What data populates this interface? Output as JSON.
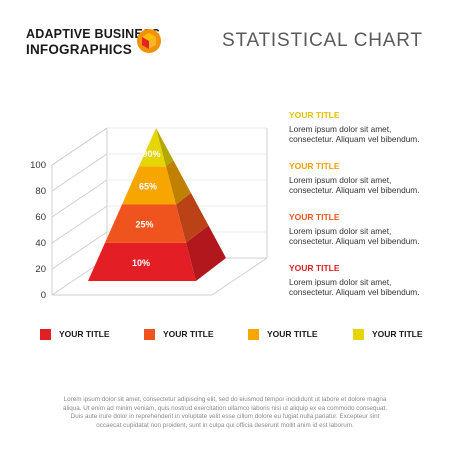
{
  "header": {
    "brand_line1": "ADAPTIVE BUSINESS",
    "brand_line2": "INFOGRAPHICS",
    "title": "STATISTICAL CHART"
  },
  "colors": {
    "red": "#e31e24",
    "orange_red": "#f0541e",
    "orange": "#f7a600",
    "yellow": "#e5d600",
    "icon_red": "#e52421",
    "icon_orange": "#f39200",
    "icon_yellow": "#fcc000"
  },
  "chart_data": {
    "type": "pyramid",
    "ylim": [
      0,
      100
    ],
    "yticks": [
      "0",
      "20",
      "40",
      "60",
      "80",
      "100"
    ],
    "segments": [
      {
        "label": "10%",
        "value": 10,
        "color": "#e31e24"
      },
      {
        "label": "25%",
        "value": 25,
        "color": "#f0541e"
      },
      {
        "label": "65%",
        "value": 65,
        "color": "#f7a600"
      },
      {
        "label": "90%",
        "value": 90,
        "color": "#e5d600"
      }
    ]
  },
  "side_list": [
    {
      "title": "YOUR TITLE",
      "color": "#e5c200",
      "line1": "Lorem ipsum dolor sit amet,",
      "line2": "consectetur. Aliquam vel bibendum."
    },
    {
      "title": "YOUR TITLE",
      "color": "#f2a200",
      "line1": "Lorem ipsum dolor sit amet,",
      "line2": "consectetur. Aliquam vel bibendum."
    },
    {
      "title": "YOUR TITLE",
      "color": "#f0541e",
      "line1": "Lorem ipsum dolor sit amet,",
      "line2": "consectetur. Aliquam vel bibendum."
    },
    {
      "title": "YOUR TITLE",
      "color": "#e31e24",
      "line1": "Lorem ipsum dolor sit amet,",
      "line2": "consectetur. Aliquam vel bibendum."
    }
  ],
  "legend": [
    {
      "label": "YOUR TITLE",
      "color": "#e31e24"
    },
    {
      "label": "YOUR TITLE",
      "color": "#f0541e"
    },
    {
      "label": "YOUR TITLE",
      "color": "#f7a600"
    },
    {
      "label": "YOUR TITLE",
      "color": "#e5d600"
    }
  ],
  "footer": {
    "line1": "Lorem ipsum dolor sit amet, consectetur adipiscing elit, sed do eiusmod tempor incididunt ut labore et dolore magna",
    "line2": "aliqua. Ut enim ad minim veniam, quis nostrud exercitation ullamco laboris nisi ut aliquip ex ea commodo consequat.",
    "line3": "Duis aute irure dolor in reprehenderit in voluptate velit esse cillum dolore eu fugiat nulla pariatur. Excepteur sint",
    "line4": "occaecat cupidatat non proident, sunt in culpa qui officia deserunt mollit anim id est laborum."
  }
}
